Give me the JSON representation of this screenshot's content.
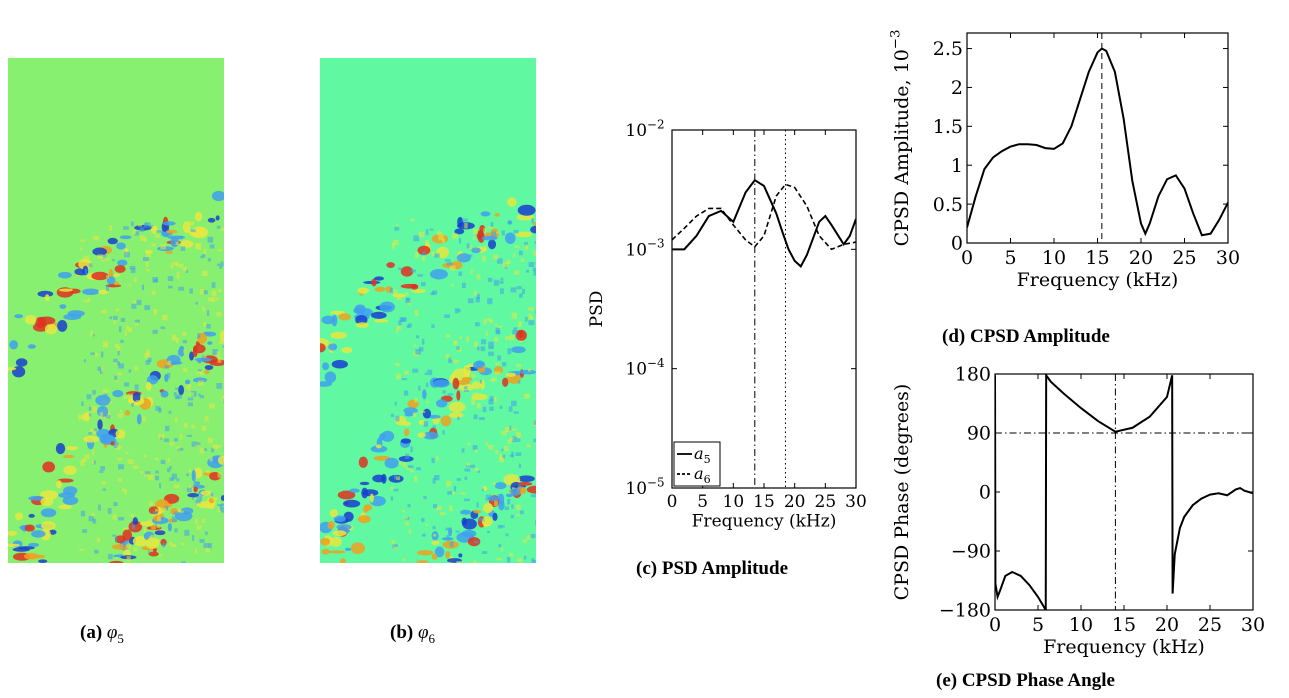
{
  "captions": {
    "a": {
      "tag": "(a)",
      "symbol": "φ",
      "sub": "5"
    },
    "b": {
      "tag": "(b)",
      "symbol": "φ",
      "sub": "6"
    },
    "c": "(c) PSD Amplitude",
    "d": "(d) CPSD Amplitude",
    "e": "(e) CPSD Phase Angle"
  },
  "colors": {
    "field_a_bg": "#88f070",
    "field_b_bg": "#60f8a0",
    "hot": "#e03020",
    "warm": "#f0a020",
    "yellow": "#e8e840",
    "cold": "#1840d0",
    "cool": "#40a0f0",
    "line": "#000000"
  },
  "chart_data": [
    {
      "id": "c",
      "type": "line",
      "xlabel": "Frequency (kHz)",
      "ylabel": "PSD",
      "xlim": [
        0,
        30
      ],
      "ylim": [
        1e-05,
        0.01
      ],
      "yscale": "log",
      "xticks": [
        0,
        5,
        10,
        15,
        20,
        25,
        30
      ],
      "yticks": [
        {
          "base": "10",
          "exp": "−2"
        },
        {
          "base": "10",
          "exp": "−3"
        },
        {
          "base": "10",
          "exp": "−4"
        },
        {
          "base": "10",
          "exp": "−5"
        }
      ],
      "legend": {
        "placement": "bottom-left",
        "entries": [
          {
            "base": "a",
            "sub": "5"
          },
          {
            "base": "a",
            "sub": "6"
          }
        ]
      },
      "vlines": [
        {
          "x": 13.5,
          "style": "dashdot"
        },
        {
          "x": 18.5,
          "style": "dotted"
        }
      ],
      "series": [
        {
          "style": "solid",
          "x": [
            0,
            2,
            4,
            6,
            8,
            10,
            12,
            13.5,
            15,
            17,
            18,
            19,
            20,
            21,
            22,
            24,
            25,
            26,
            28,
            29,
            30
          ],
          "y": [
            0.001,
            0.001,
            0.0013,
            0.0019,
            0.0021,
            0.0017,
            0.003,
            0.0038,
            0.0034,
            0.002,
            0.0014,
            0.001,
            0.0008,
            0.00072,
            0.0009,
            0.0017,
            0.0019,
            0.0016,
            0.0011,
            0.0013,
            0.0018
          ]
        },
        {
          "style": "dashed",
          "x": [
            0,
            2,
            4,
            6,
            8,
            10,
            12,
            13.5,
            15,
            17,
            18.5,
            20,
            22,
            24,
            26,
            28,
            30
          ],
          "y": [
            0.0012,
            0.0015,
            0.0019,
            0.0022,
            0.0022,
            0.0016,
            0.0012,
            0.00105,
            0.0013,
            0.0028,
            0.0035,
            0.0033,
            0.0023,
            0.0013,
            0.001,
            0.0011,
            0.00115
          ]
        }
      ]
    },
    {
      "id": "d",
      "type": "line",
      "xlabel": "Frequency (kHz)",
      "ylabel": "CPSD Amplitude, 10",
      "ylabel_exp": "−3",
      "xlim": [
        0,
        30
      ],
      "ylim": [
        0,
        2.7
      ],
      "xticks": [
        0,
        5,
        10,
        15,
        20,
        25,
        30
      ],
      "yticks": [
        0,
        0.5,
        1,
        1.5,
        2,
        2.5
      ],
      "ytick_labels": [
        "0",
        "0.5",
        "1",
        "1.5",
        "2",
        "2.5"
      ],
      "vlines": [
        {
          "x": 15.5,
          "style": "dashed"
        }
      ],
      "series": [
        {
          "style": "solid",
          "x": [
            0,
            1,
            2,
            3,
            4,
            5,
            6,
            7,
            8,
            9,
            10,
            11,
            12,
            13,
            14,
            15,
            15.5,
            16,
            17,
            18,
            19,
            20,
            20.5,
            21,
            22,
            23,
            24,
            25,
            26,
            27,
            28,
            29,
            30
          ],
          "y": [
            0.2,
            0.6,
            0.95,
            1.1,
            1.18,
            1.24,
            1.27,
            1.27,
            1.26,
            1.22,
            1.21,
            1.28,
            1.5,
            1.85,
            2.2,
            2.45,
            2.5,
            2.47,
            2.2,
            1.6,
            0.8,
            0.25,
            0.12,
            0.25,
            0.6,
            0.82,
            0.87,
            0.7,
            0.38,
            0.1,
            0.12,
            0.3,
            0.52
          ]
        }
      ]
    },
    {
      "id": "e",
      "type": "line",
      "xlabel": "Frequency (kHz)",
      "ylabel": "CPSD Phase (degrees)",
      "xlim": [
        0,
        30
      ],
      "ylim": [
        -180,
        180
      ],
      "xticks": [
        0,
        5,
        10,
        15,
        20,
        25,
        30
      ],
      "yticks": [
        -180,
        -90,
        0,
        90,
        180
      ],
      "ytick_labels": [
        "−180",
        "−90",
        "0",
        "90",
        "180"
      ],
      "vlines": [
        {
          "x": 14,
          "style": "dashdot"
        }
      ],
      "hlines": [
        {
          "y": 90,
          "style": "dashdot"
        }
      ],
      "series": [
        {
          "style": "solid",
          "x": [
            0,
            0.05,
            0.3,
            0.6,
            1.2,
            2,
            3,
            4,
            5,
            5.9,
            5.95,
            6.5,
            8,
            10,
            12,
            14,
            16,
            18,
            20,
            20.6,
            20.65,
            20.9,
            21.5,
            22,
            23,
            24,
            25,
            26,
            27,
            28,
            28.5,
            29,
            30
          ],
          "y": [
            178,
            -140,
            -160,
            -150,
            -128,
            -122,
            -128,
            -142,
            -160,
            -180,
            178,
            168,
            150,
            128,
            108,
            92,
            98,
            115,
            145,
            178,
            -155,
            -95,
            -55,
            -38,
            -20,
            -10,
            -4,
            -2,
            -5,
            4,
            6,
            2,
            -2
          ]
        }
      ]
    }
  ]
}
